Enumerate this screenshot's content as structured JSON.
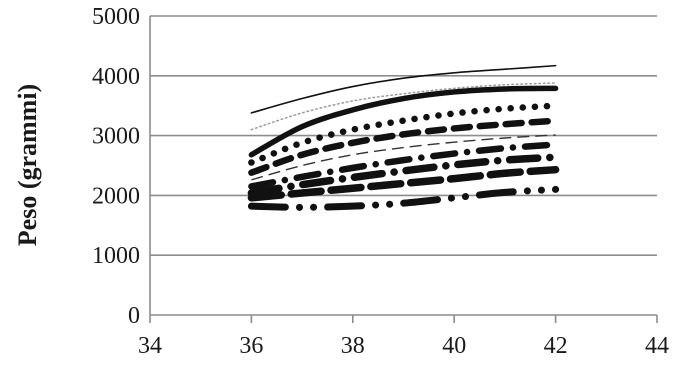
{
  "chart_data": {
    "type": "line",
    "title": "",
    "xlabel": "",
    "ylabel": "Peso (grammi)",
    "xlim": [
      34,
      44
    ],
    "ylim": [
      0,
      5000
    ],
    "x_ticks": [
      "34",
      "36",
      "38",
      "40",
      "42",
      "44"
    ],
    "y_ticks": [
      "0",
      "1000",
      "2000",
      "3000",
      "4000",
      "5000"
    ],
    "grid": "horizontal",
    "legend": "none",
    "x": [
      36,
      37,
      38,
      39,
      40,
      41,
      42
    ],
    "series": [
      {
        "values": [
          3380,
          3620,
          3820,
          3960,
          4050,
          4110,
          4170
        ],
        "style": "thin-solid"
      },
      {
        "values": [
          3100,
          3380,
          3580,
          3700,
          3790,
          3850,
          3880
        ],
        "style": "light-dotted"
      },
      {
        "values": [
          2680,
          3150,
          3430,
          3620,
          3730,
          3780,
          3790
        ],
        "style": "thick-solid"
      },
      {
        "values": [
          2550,
          2880,
          3100,
          3250,
          3370,
          3450,
          3500
        ],
        "style": "round-dots"
      },
      {
        "values": [
          2380,
          2680,
          2880,
          3020,
          3120,
          3190,
          3250
        ],
        "style": "thick-dash"
      },
      {
        "values": [
          2260,
          2500,
          2680,
          2800,
          2890,
          2960,
          3010
        ],
        "style": "long-dash"
      },
      {
        "values": [
          2150,
          2310,
          2460,
          2590,
          2700,
          2790,
          2850
        ],
        "style": "dash-dot"
      },
      {
        "values": [
          2040,
          2180,
          2300,
          2410,
          2510,
          2590,
          2640
        ],
        "style": "heavy-dash-dot"
      },
      {
        "values": [
          1960,
          2040,
          2120,
          2200,
          2280,
          2370,
          2430
        ],
        "style": "heavy-dash"
      },
      {
        "values": [
          1820,
          1800,
          1820,
          1870,
          1960,
          2050,
          2100
        ],
        "style": "dash-dot-dot"
      }
    ]
  }
}
